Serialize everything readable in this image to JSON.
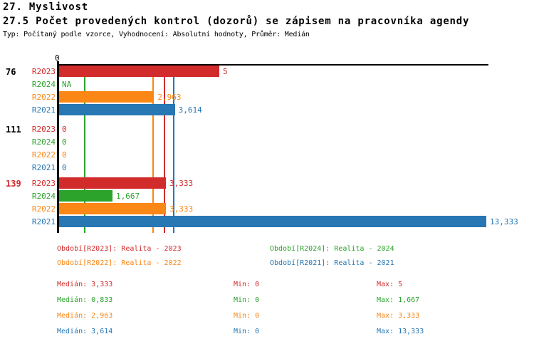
{
  "header": {
    "section_title": "27. Myslivost",
    "indicator_title": "27.5 Počet provedených kontrol (dozorů) se zápisem na pracovníka agendy",
    "meta": "Typ: Počítaný podle vzorce, Vyhodnocení: Absolutní hodnoty, Průměr: Medián"
  },
  "chart_data": {
    "type": "bar",
    "orientation": "horizontal",
    "title": "27.5 Počet provedených kontrol (dozorů) se zápisem na pracovníka agendy",
    "axis": {
      "origin_label": "0",
      "xlim": [
        0,
        13.44
      ],
      "grid": false
    },
    "series_order": [
      "R2023",
      "R2024",
      "R2022",
      "R2021"
    ],
    "colors": {
      "R2023": "#d22b2b",
      "R2024": "#2ca42c",
      "R2022": "#fa8716",
      "R2021": "#2677b3",
      "axis": "#000000",
      "group_label_default": "#000000"
    },
    "groups": [
      {
        "label": "76",
        "label_color": "#000000",
        "rows": [
          {
            "series": "R2023",
            "value": 5,
            "display": "5"
          },
          {
            "series": "R2024",
            "value": null,
            "display": "NA"
          },
          {
            "series": "R2022",
            "value": 2.963,
            "display": "2,963"
          },
          {
            "series": "R2021",
            "value": 3.614,
            "display": "3,614"
          }
        ]
      },
      {
        "label": "111",
        "label_color": "#000000",
        "rows": [
          {
            "series": "R2023",
            "value": 0,
            "display": "0"
          },
          {
            "series": "R2024",
            "value": 0,
            "display": "0"
          },
          {
            "series": "R2022",
            "value": 0,
            "display": "0"
          },
          {
            "series": "R2021",
            "value": 0,
            "display": "0"
          }
        ]
      },
      {
        "label": "139",
        "label_color": "#d22b2b",
        "rows": [
          {
            "series": "R2023",
            "value": 3.333,
            "display": "3,333"
          },
          {
            "series": "R2024",
            "value": 1.667,
            "display": "1,667"
          },
          {
            "series": "R2022",
            "value": 3.333,
            "display": "3,333"
          },
          {
            "series": "R2021",
            "value": 13.333,
            "display": "13,333"
          }
        ]
      }
    ],
    "median_lines": [
      {
        "series": "R2024",
        "value": 0.833
      },
      {
        "series": "R2022",
        "value": 2.963
      },
      {
        "series": "R2023",
        "value": 3.333
      },
      {
        "series": "R2021",
        "value": 3.614
      }
    ],
    "legend": [
      {
        "series": "R2023",
        "label": "Období[R2023]: Realita - 2023",
        "col": 0,
        "row": 0
      },
      {
        "series": "R2024",
        "label": "Období[R2024]: Realita - 2024",
        "col": 1,
        "row": 0
      },
      {
        "series": "R2022",
        "label": "Období[R2022]: Realita - 2022",
        "col": 0,
        "row": 1
      },
      {
        "series": "R2021",
        "label": "Období[R2021]: Realita - 2021",
        "col": 1,
        "row": 1
      }
    ],
    "stats": {
      "labels": {
        "median": "Medián",
        "min": "Min",
        "max": "Max"
      },
      "rows": [
        {
          "series": "R2023",
          "median": "3,333",
          "min": "0",
          "max": "5"
        },
        {
          "series": "R2024",
          "median": "0,833",
          "min": "0",
          "max": "1,667"
        },
        {
          "series": "R2022",
          "median": "2,963",
          "min": "0",
          "max": "3,333"
        },
        {
          "series": "R2021",
          "median": "3,614",
          "min": "0",
          "max": "13,333"
        }
      ]
    }
  }
}
